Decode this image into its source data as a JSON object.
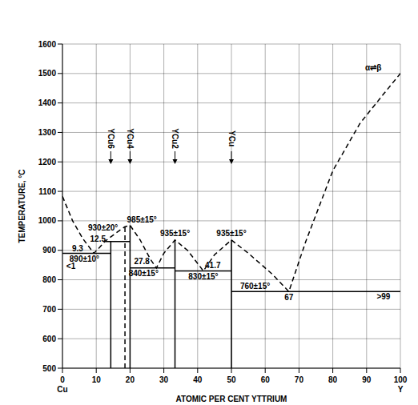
{
  "chart_data": {
    "type": "line",
    "x_label": "ATOMIC PER CENT YTTRIUM",
    "y_label": "TEMPERATURE, °C",
    "x_end_labels": [
      "Cu",
      "Y"
    ],
    "xlim": [
      0,
      100
    ],
    "ylim": [
      500,
      1600
    ],
    "xticks": [
      0,
      10,
      20,
      30,
      40,
      50,
      60,
      70,
      80,
      90,
      100
    ],
    "yticks": [
      500,
      600,
      700,
      800,
      900,
      1000,
      1100,
      1200,
      1300,
      1400,
      1500,
      1600
    ],
    "grid": true,
    "series": [
      {
        "color": "#000000",
        "line_style": "dashed",
        "x": [
          0,
          3,
          6,
          9.3,
          11,
          12.5,
          16,
          18.5,
          20,
          23,
          26,
          27.8,
          30,
          33.3,
          37,
          41.7,
          45,
          50,
          55,
          62,
          67,
          72,
          80,
          88,
          95,
          100
        ],
        "values": [
          1083,
          1000,
          940,
          890,
          910,
          930,
          960,
          980,
          985,
          935,
          870,
          840,
          890,
          935,
          900,
          830,
          885,
          935,
          890,
          820,
          760,
          930,
          1170,
          1330,
          1430,
          1500
        ]
      },
      {
        "color": "#000000",
        "line_style": "solid",
        "x": [
          0,
          14.3
        ],
        "values": [
          890,
          890
        ]
      },
      {
        "color": "#000000",
        "line_style": "solid",
        "x": [
          12.5,
          20
        ],
        "values": [
          930,
          930
        ]
      },
      {
        "color": "#000000",
        "line_style": "solid",
        "x": [
          20,
          33.3
        ],
        "values": [
          840,
          840
        ]
      },
      {
        "color": "#000000",
        "line_style": "solid",
        "x": [
          33.3,
          50
        ],
        "values": [
          830,
          830
        ]
      },
      {
        "color": "#000000",
        "line_style": "solid",
        "x": [
          50,
          100
        ],
        "values": [
          760,
          760
        ]
      },
      {
        "color": "#000000",
        "line_style": "dashed",
        "x": [
          18.5,
          18.5
        ],
        "values": [
          500,
          985
        ]
      }
    ],
    "compounds": [
      {
        "label": "YCu6",
        "x": 14.3,
        "top": 930
      },
      {
        "label": "YCu4",
        "x": 20,
        "top": 985
      },
      {
        "label": "YCu2",
        "x": 33.3,
        "top": 935
      },
      {
        "label": "YCu",
        "x": 50,
        "top": 935
      }
    ],
    "annotations": [
      {
        "text": "930±20°",
        "x": 12,
        "y": 978
      },
      {
        "text": "985±15°",
        "x": 23.5,
        "y": 1005
      },
      {
        "text": "12.5",
        "x": 10.5,
        "y": 940
      },
      {
        "text": "9.3",
        "x": 4.5,
        "y": 905
      },
      {
        "text": "890±10°",
        "x": 6.5,
        "y": 870
      },
      {
        "text": "<1",
        "x": 2.5,
        "y": 845
      },
      {
        "text": "27.8",
        "x": 23.5,
        "y": 862
      },
      {
        "text": "840±15°",
        "x": 24,
        "y": 822
      },
      {
        "text": "935±15°",
        "x": 33.3,
        "y": 957
      },
      {
        "text": "935±15°",
        "x": 50,
        "y": 957
      },
      {
        "text": "41.7",
        "x": 44.5,
        "y": 850
      },
      {
        "text": "830±15°",
        "x": 41.7,
        "y": 812
      },
      {
        "text": "760±15°",
        "x": 57,
        "y": 778
      },
      {
        "text": "67",
        "x": 67,
        "y": 740
      },
      {
        "text": ">99",
        "x": 95,
        "y": 742
      },
      {
        "text": "α⇌β",
        "x": 92,
        "y": 1520
      }
    ]
  }
}
